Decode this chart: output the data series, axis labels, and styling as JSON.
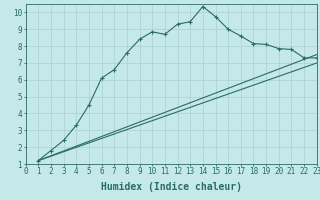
{
  "xlabel": "Humidex (Indice chaleur)",
  "background_color": "#c5e8e8",
  "grid_color": "#aed4d4",
  "line_color": "#2a6b6b",
  "xlim": [
    0,
    23
  ],
  "ylim": [
    1,
    10.5
  ],
  "xticks": [
    0,
    1,
    2,
    3,
    4,
    5,
    6,
    7,
    8,
    9,
    10,
    11,
    12,
    13,
    14,
    15,
    16,
    17,
    18,
    19,
    20,
    21,
    22,
    23
  ],
  "yticks": [
    1,
    2,
    3,
    4,
    5,
    6,
    7,
    8,
    9,
    10
  ],
  "line1_x": [
    1,
    2,
    3,
    4,
    5,
    6,
    7,
    8,
    9,
    10,
    11,
    12,
    13,
    14,
    15,
    16,
    17,
    18,
    19,
    20,
    21,
    22,
    23
  ],
  "line1_y": [
    1.2,
    1.8,
    2.4,
    3.3,
    4.5,
    6.1,
    6.6,
    7.6,
    8.4,
    8.85,
    8.7,
    9.3,
    9.45,
    10.35,
    9.75,
    9.0,
    8.6,
    8.15,
    8.1,
    7.85,
    7.8,
    7.3,
    7.3
  ],
  "line2_x": [
    1,
    23
  ],
  "line2_y": [
    1.2,
    7.5
  ],
  "line3_x": [
    1,
    23
  ],
  "line3_y": [
    1.2,
    7.0
  ],
  "xlabel_fontsize": 7,
  "tick_fontsize": 5.5
}
